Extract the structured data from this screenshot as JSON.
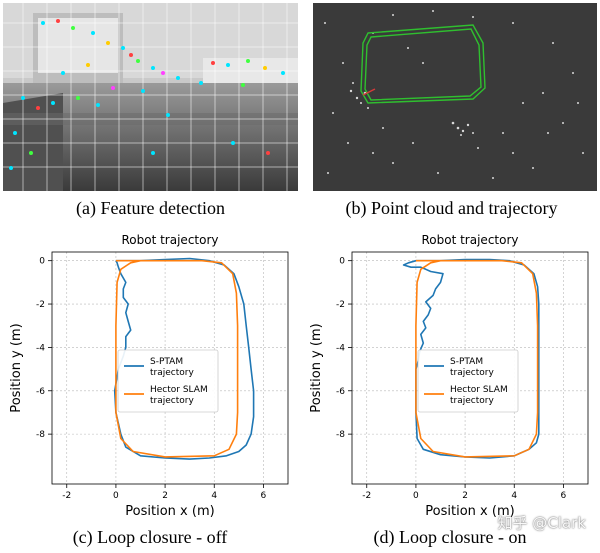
{
  "figure": {
    "captions": {
      "a": "(a) Feature detection",
      "b": "(b) Point cloud and trajectory",
      "c": "(c) Loop closure - off",
      "d": "(d) Loop closure - on"
    },
    "watermark": "知乎 @Clark"
  },
  "chart_data": [
    {
      "id": "c",
      "type": "line",
      "title": "Robot trajectory",
      "xlabel": "Position x (m)",
      "ylabel": "Position y (m)",
      "xlim": [
        -2.6,
        7.0
      ],
      "ylim": [
        -10.3,
        0.4
      ],
      "xticks": [
        -2,
        0,
        2,
        4,
        6
      ],
      "yticks": [
        0,
        -2,
        -4,
        -6,
        -8
      ],
      "grid": true,
      "legend_position": "center",
      "series": [
        {
          "name": "S-PTAM\ntrajectory",
          "color": "#1f77b4",
          "x": [
            0.0,
            1.0,
            2.0,
            3.0,
            3.8,
            4.4,
            4.8,
            5.0,
            5.2,
            5.3,
            5.4,
            5.5,
            5.6,
            5.6,
            5.5,
            5.3,
            5.0,
            4.5,
            3.8,
            3.0,
            2.0,
            1.0,
            0.4,
            0.2,
            0.0,
            -0.05,
            0.1,
            0.3,
            0.4,
            0.4,
            0.6,
            0.5,
            0.4,
            0.5,
            0.3,
            0.3,
            0.4,
            0.2,
            0.1,
            0.05,
            0.0
          ],
          "y": [
            0.0,
            0.0,
            0.05,
            0.1,
            0.0,
            -0.2,
            -0.6,
            -1.2,
            -2.0,
            -3.0,
            -4.0,
            -5.0,
            -6.0,
            -7.2,
            -8.0,
            -8.5,
            -8.8,
            -9.0,
            -9.1,
            -9.15,
            -9.1,
            -9.0,
            -8.6,
            -8.0,
            -7.0,
            -6.0,
            -5.0,
            -4.4,
            -4.0,
            -3.5,
            -3.2,
            -2.8,
            -2.4,
            -2.0,
            -1.7,
            -1.3,
            -1.0,
            -0.6,
            -0.3,
            -0.1,
            0.0
          ]
        },
        {
          "name": "Hector SLAM\ntrajectory",
          "color": "#ff7f0e",
          "x": [
            0.0,
            2.0,
            3.5,
            4.3,
            4.75,
            4.9,
            4.95,
            4.95,
            4.9,
            4.6,
            4.0,
            2.0,
            0.7,
            0.2,
            0.0,
            0.0,
            0.05,
            0.2,
            0.6,
            1.0,
            0.0
          ],
          "y": [
            0.0,
            0.0,
            0.0,
            -0.1,
            -0.6,
            -1.5,
            -3.0,
            -7.0,
            -8.0,
            -8.7,
            -9.0,
            -9.05,
            -8.8,
            -8.2,
            -7.0,
            -3.0,
            -1.0,
            -0.4,
            -0.1,
            0.0,
            0.0
          ]
        }
      ]
    },
    {
      "id": "d",
      "type": "line",
      "title": "Robot trajectory",
      "xlabel": "Position x (m)",
      "ylabel": "Position y (m)",
      "xlim": [
        -2.6,
        7.0
      ],
      "ylim": [
        -10.3,
        0.4
      ],
      "xticks": [
        -2,
        0,
        2,
        4,
        6
      ],
      "yticks": [
        0,
        -2,
        -4,
        -6,
        -8
      ],
      "grid": true,
      "legend_position": "center",
      "series": [
        {
          "name": "S-PTAM\ntrajectory",
          "color": "#1f77b4",
          "x": [
            0.0,
            1.0,
            2.0,
            3.0,
            3.8,
            4.4,
            4.8,
            4.95,
            5.0,
            5.0,
            5.0,
            4.9,
            4.6,
            4.2,
            4.0,
            3.0,
            2.0,
            1.0,
            0.3,
            0.05,
            0.0,
            0.0,
            0.1,
            0.15,
            0.3,
            0.2,
            0.4,
            0.3,
            0.5,
            0.6,
            0.4,
            0.7,
            0.8,
            1.0,
            1.1,
            0.6,
            0.4,
            0.2,
            0.0,
            -0.2,
            -0.5,
            -0.3,
            0.0
          ],
          "y": [
            0.0,
            0.0,
            0.05,
            0.05,
            0.0,
            -0.2,
            -0.6,
            -1.2,
            -2.0,
            -5.0,
            -8.0,
            -8.4,
            -8.7,
            -8.9,
            -9.0,
            -9.1,
            -9.05,
            -8.95,
            -8.7,
            -8.2,
            -7.0,
            -5.0,
            -4.6,
            -4.2,
            -3.8,
            -3.4,
            -3.1,
            -2.8,
            -2.5,
            -2.2,
            -1.9,
            -1.6,
            -1.3,
            -1.0,
            -0.6,
            -0.5,
            -0.4,
            -0.3,
            -0.3,
            -0.3,
            -0.2,
            -0.1,
            0.0
          ]
        },
        {
          "name": "Hector SLAM\ntrajectory",
          "color": "#ff7f0e",
          "x": [
            0.0,
            2.0,
            3.5,
            4.3,
            4.75,
            4.9,
            4.95,
            4.95,
            4.9,
            4.6,
            4.0,
            2.0,
            0.7,
            0.2,
            0.0,
            0.0,
            0.05,
            0.2,
            0.6,
            1.0,
            0.0
          ],
          "y": [
            0.0,
            0.0,
            0.0,
            -0.1,
            -0.6,
            -1.5,
            -3.0,
            -7.0,
            -8.0,
            -8.7,
            -9.0,
            -9.05,
            -8.8,
            -8.2,
            -7.0,
            -3.0,
            -1.0,
            -0.4,
            -0.1,
            0.0,
            0.0
          ]
        }
      ]
    }
  ]
}
